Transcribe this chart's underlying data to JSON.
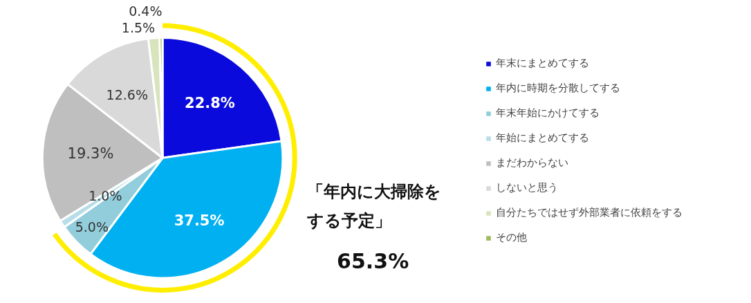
{
  "chart_data": {
    "type": "pie",
    "categories": [
      "年末にまとめてする",
      "年内に時期を分散してする",
      "年末年始にかけてする",
      "年始にまとめてする",
      "まだわからない",
      "しないと思う",
      "自分たちではせず外部業者に依頼をする",
      "その他"
    ],
    "values": [
      22.8,
      37.5,
      5.0,
      1.0,
      19.3,
      12.6,
      1.5,
      0.4
    ],
    "colors": [
      "#0a0adc",
      "#00b0f0",
      "#92cddc",
      "#b7dee8",
      "#bfbfbf",
      "#d9d9d9",
      "#d8e4bc",
      "#9bbb59"
    ],
    "value_labels": [
      "22.8%",
      "37.5%",
      "5.0%",
      "1.0%",
      "19.3%",
      "12.6%",
      "1.5%",
      "0.4%"
    ],
    "legend": "right",
    "annotations": [
      "「年内に大掃除をする予定」",
      "65.3%"
    ]
  }
}
